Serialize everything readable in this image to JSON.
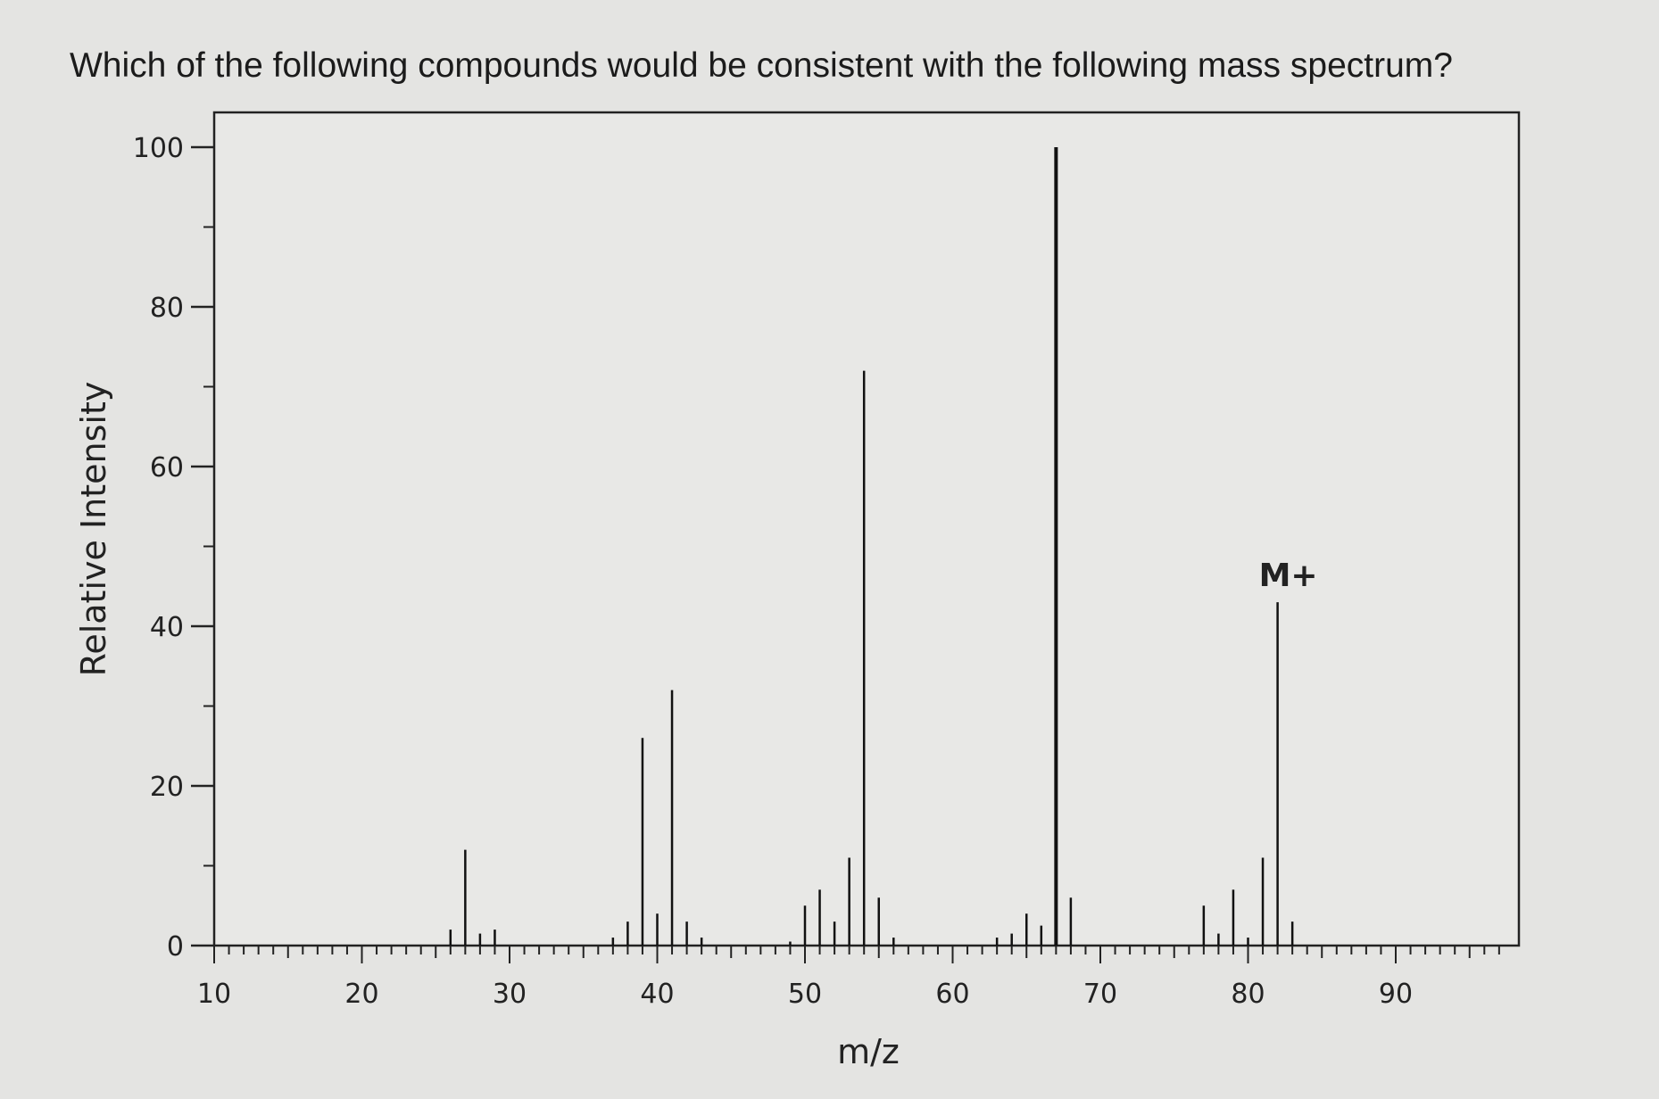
{
  "question": "Which of the following compounds would be consistent with the following mass spectrum?",
  "chart_data": {
    "type": "bar",
    "title": "",
    "xlabel": "m/z",
    "ylabel": "Relative Intensity",
    "xlim": [
      10,
      97
    ],
    "ylim": [
      0,
      100
    ],
    "x_ticks": [
      10,
      20,
      30,
      40,
      50,
      60,
      70,
      80,
      90
    ],
    "y_ticks": [
      0,
      20,
      40,
      60,
      80,
      100
    ],
    "grid": false,
    "legend": "none",
    "x": [
      26,
      27,
      28,
      29,
      37,
      38,
      39,
      40,
      41,
      42,
      43,
      49,
      50,
      51,
      52,
      53,
      54,
      55,
      56,
      63,
      64,
      65,
      66,
      67,
      68,
      77,
      78,
      79,
      80,
      81,
      82,
      83
    ],
    "values": [
      2,
      12,
      1.5,
      2,
      1,
      3,
      26,
      4,
      32,
      3,
      1,
      0.5,
      5,
      7,
      3,
      11,
      72,
      6,
      1,
      1,
      1.5,
      4,
      2.5,
      100,
      6,
      5,
      1.5,
      7,
      1,
      11,
      43,
      3
    ],
    "annotations": [
      {
        "text": "M+",
        "x": 82,
        "y": 43
      }
    ]
  }
}
